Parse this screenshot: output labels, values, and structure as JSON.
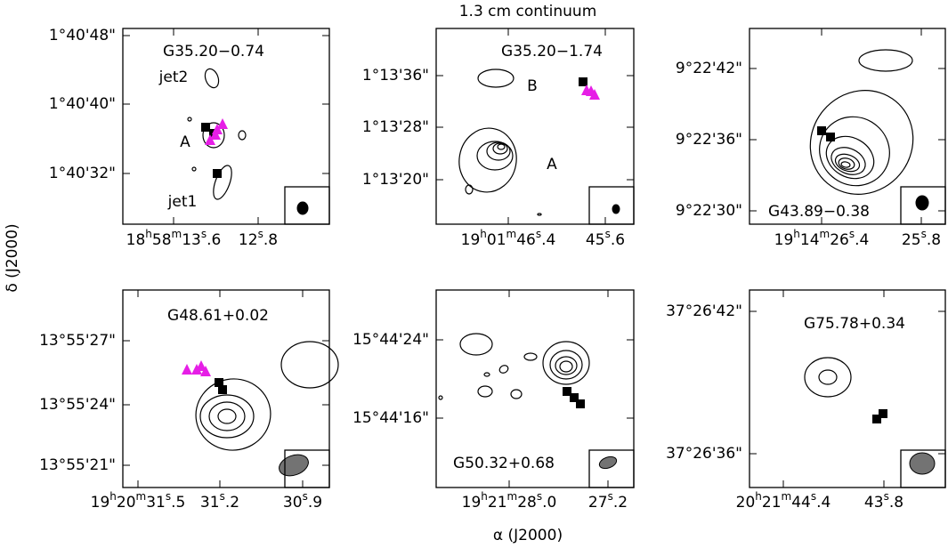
{
  "figure": {
    "title": "1.3 cm continuum",
    "x_label": "α (J2000)",
    "y_label": "δ (J2000)",
    "panels": [
      {
        "name": "G35.20−0.74",
        "dec_ticks": [
          "1°40'48\"",
          "1°40'40\"",
          "1°40'32\""
        ],
        "ra_ticks": [
          [
            "18",
            "h",
            "58",
            "m",
            "13",
            "s",
            ".6"
          ],
          [
            "12",
            "s",
            ".8"
          ]
        ],
        "annotations": [
          "jet2",
          "A",
          "jet1"
        ]
      },
      {
        "name": "G35.20−1.74",
        "dec_ticks": [
          "1°13'36\"",
          "1°13'28\"",
          "1°13'20\""
        ],
        "ra_ticks": [
          [
            "19",
            "h",
            "01",
            "m",
            "46",
            "s",
            ".4"
          ],
          [
            "45",
            "s",
            ".6"
          ]
        ],
        "annotations": [
          "B",
          "A"
        ]
      },
      {
        "name": "G43.89−0.38",
        "dec_ticks": [
          "9°22'42\"",
          "9°22'36\"",
          "9°22'30\""
        ],
        "ra_ticks": [
          [
            "19",
            "h",
            "14",
            "m",
            "26",
            "s",
            ".4"
          ],
          [
            "25",
            "s",
            ".8"
          ]
        ],
        "annotations": []
      },
      {
        "name": "G48.61+0.02",
        "dec_ticks": [
          "13°55'27\"",
          "13°55'24\"",
          "13°55'21\""
        ],
        "ra_ticks": [
          [
            "19",
            "h",
            "20",
            "m",
            "31",
            "s",
            ".5"
          ],
          [
            "31",
            "s",
            ".2"
          ],
          [
            "30",
            "s",
            ".9"
          ]
        ],
        "annotations": []
      },
      {
        "name": "G50.32+0.68",
        "dec_ticks": [
          "15°44'24\"",
          "15°44'16\""
        ],
        "ra_ticks": [
          [
            "19",
            "h",
            "21",
            "m",
            "28",
            "s",
            ".0"
          ],
          [
            "27",
            "s",
            ".2"
          ]
        ],
        "annotations": []
      },
      {
        "name": "G75.78+0.34",
        "dec_ticks": [
          "37°26'42\"",
          "37°26'36\""
        ],
        "ra_ticks": [
          [
            "20",
            "h",
            "21",
            "m",
            "44",
            "s",
            ".4"
          ],
          [
            "43",
            "s",
            ".8"
          ]
        ],
        "annotations": []
      }
    ]
  }
}
